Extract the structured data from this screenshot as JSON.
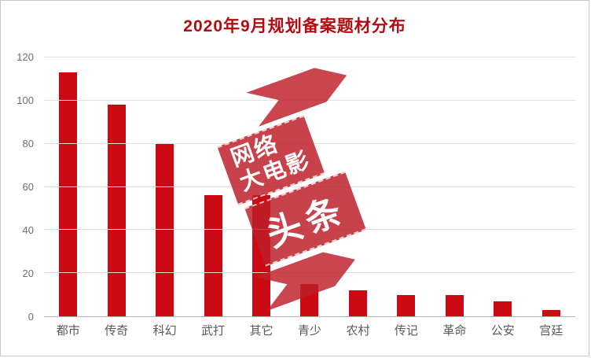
{
  "chart_data": {
    "type": "bar",
    "title": "2020年9月规划备案题材分布",
    "categories": [
      "都市",
      "传奇",
      "科幻",
      "武打",
      "其它",
      "青少",
      "农村",
      "传记",
      "革命",
      "公安",
      "宫廷"
    ],
    "values": [
      113,
      98,
      80,
      56,
      56,
      15,
      12,
      10,
      10,
      7,
      3
    ],
    "xlabel": "",
    "ylabel": "",
    "ylim": [
      0,
      120
    ],
    "yticks": [
      0,
      20,
      40,
      60,
      80,
      100,
      120
    ],
    "grid": true,
    "legend": "none",
    "bar_color": "#cc0a14",
    "title_color": "#b20b12"
  },
  "watermark": {
    "line1": "网络",
    "line2": "大电影",
    "line3": "头条",
    "color": "#be1e28"
  }
}
